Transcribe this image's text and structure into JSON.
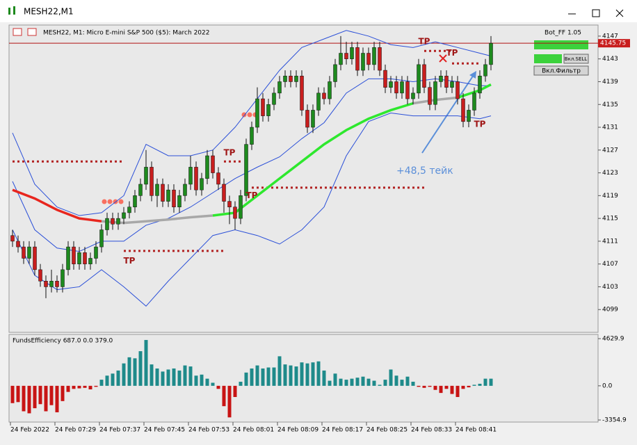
{
  "window": {
    "title": "MESH22,M1"
  },
  "chart_data": {
    "type": "candlestick",
    "header": "MESH22, M1:  Micro E-mini S&P 500 ($5): March 2022",
    "bot_label": "Bot_FF 1.05",
    "buttons": [
      "Вкл.SELL",
      "Вкл.Фильтр"
    ],
    "annotation": "+48,5 тейк",
    "up_color": "#1e8a1e",
    "down_color": "#c81e1e",
    "ylim": [
      4095,
      4148.7
    ],
    "yticks": [
      4147,
      4143,
      4139,
      4135,
      4131,
      4127,
      4123,
      4119,
      4115,
      4111,
      4107,
      4103,
      4099
    ],
    "last_price": 4145.75,
    "time_labels": [
      "24 Feb 2022",
      "24 Feb 07:29",
      "24 Feb 07:37",
      "24 Feb 07:45",
      "24 Feb 07:53",
      "24 Feb 08:01",
      "24 Feb 08:09",
      "24 Feb 08:17",
      "24 Feb 08:25",
      "24 Feb 08:33",
      "24 Feb 08:41"
    ],
    "candles": [
      [
        4112,
        4113,
        4110,
        4111
      ],
      [
        4111,
        4112,
        4109,
        4110
      ],
      [
        4110,
        4111,
        4107,
        4108
      ],
      [
        4108,
        4111,
        4107,
        4110
      ],
      [
        4110,
        4111,
        4105,
        4106
      ],
      [
        4106,
        4107,
        4103,
        4104
      ],
      [
        4104,
        4105,
        4101,
        4103
      ],
      [
        4103,
        4106,
        4102,
        4104
      ],
      [
        4104,
        4105,
        4102,
        4103
      ],
      [
        4103,
        4107,
        4102,
        4106
      ],
      [
        4106,
        4111,
        4105,
        4110
      ],
      [
        4110,
        4111,
        4106,
        4107
      ],
      [
        4107,
        4110,
        4106,
        4109
      ],
      [
        4109,
        4110,
        4106,
        4107
      ],
      [
        4107,
        4109,
        4106,
        4108
      ],
      [
        4108,
        4111,
        4107,
        4110
      ],
      [
        4110,
        4114,
        4109,
        4113
      ],
      [
        4113,
        4116,
        4112,
        4115
      ],
      [
        4115,
        4116,
        4113,
        4114
      ],
      [
        4114,
        4116,
        4113,
        4115
      ],
      [
        4115,
        4117,
        4114,
        4116
      ],
      [
        4116,
        4118,
        4115,
        4117
      ],
      [
        4117,
        4120,
        4116,
        4119
      ],
      [
        4119,
        4122,
        4118,
        4121
      ],
      [
        4121,
        4127,
        4120,
        4124
      ],
      [
        4124,
        4125,
        4118,
        4119
      ],
      [
        4119,
        4122,
        4117,
        4121
      ],
      [
        4121,
        4122,
        4117,
        4118
      ],
      [
        4118,
        4121,
        4117,
        4120
      ],
      [
        4120,
        4121,
        4116,
        4117
      ],
      [
        4117,
        4120,
        4116,
        4119
      ],
      [
        4119,
        4122,
        4118,
        4121
      ],
      [
        4121,
        4126,
        4120,
        4124
      ],
      [
        4124,
        4125,
        4119,
        4120
      ],
      [
        4120,
        4123,
        4119,
        4122
      ],
      [
        4122,
        4127,
        4121,
        4126
      ],
      [
        4126,
        4127,
        4122,
        4123
      ],
      [
        4123,
        4124,
        4120,
        4121
      ],
      [
        4121,
        4122,
        4116,
        4118
      ],
      [
        4118,
        4119,
        4114,
        4117
      ],
      [
        4117,
        4118,
        4113,
        4115
      ],
      [
        4115,
        4120,
        4114,
        4119
      ],
      [
        4119,
        4129,
        4118,
        4128
      ],
      [
        4128,
        4132,
        4127,
        4131
      ],
      [
        4131,
        4138,
        4130,
        4136
      ],
      [
        4136,
        4137,
        4132,
        4133
      ],
      [
        4133,
        4136,
        4132,
        4135
      ],
      [
        4135,
        4138,
        4134,
        4137
      ],
      [
        4137,
        4140,
        4136,
        4139
      ],
      [
        4139,
        4141,
        4138,
        4140
      ],
      [
        4140,
        4141,
        4138,
        4139
      ],
      [
        4139,
        4141,
        4138,
        4140
      ],
      [
        4140,
        4141,
        4133,
        4134
      ],
      [
        4134,
        4135,
        4130,
        4131
      ],
      [
        4131,
        4135,
        4130,
        4134
      ],
      [
        4134,
        4138,
        4133,
        4137
      ],
      [
        4137,
        4138,
        4135,
        4136
      ],
      [
        4136,
        4140,
        4135,
        4139
      ],
      [
        4139,
        4143,
        4138,
        4142
      ],
      [
        4142,
        4147,
        4141,
        4144
      ],
      [
        4144,
        4146,
        4142,
        4143
      ],
      [
        4143,
        4146,
        4142,
        4145
      ],
      [
        4145,
        4146,
        4140,
        4141
      ],
      [
        4141,
        4145,
        4140,
        4144
      ],
      [
        4144,
        4145,
        4141,
        4142
      ],
      [
        4142,
        4146,
        4141,
        4145
      ],
      [
        4145,
        4146,
        4140,
        4141
      ],
      [
        4141,
        4142,
        4137,
        4138
      ],
      [
        4138,
        4140,
        4137,
        4139
      ],
      [
        4139,
        4140,
        4136,
        4137
      ],
      [
        4137,
        4140,
        4136,
        4139
      ],
      [
        4139,
        4140,
        4135,
        4136
      ],
      [
        4136,
        4138,
        4135,
        4137
      ],
      [
        4137,
        4143,
        4136,
        4142
      ],
      [
        4142,
        4143,
        4137,
        4138
      ],
      [
        4138,
        4139,
        4134,
        4135
      ],
      [
        4135,
        4140,
        4134,
        4139
      ],
      [
        4139,
        4141,
        4138,
        4140
      ],
      [
        4140,
        4141,
        4137,
        4138
      ],
      [
        4138,
        4140,
        4137,
        4139
      ],
      [
        4139,
        4140,
        4135,
        4136
      ],
      [
        4136,
        4137,
        4131,
        4132
      ],
      [
        4132,
        4135,
        4131,
        4134
      ],
      [
        4134,
        4138,
        4133,
        4137
      ],
      [
        4137,
        4141,
        4136,
        4140
      ],
      [
        4140,
        4143,
        4139,
        4142
      ],
      [
        4142,
        4147,
        4141,
        4145.75
      ]
    ],
    "band_color": "#2a4fd8",
    "bands": {
      "at": [
        0,
        4,
        8,
        12,
        16,
        20,
        24,
        28,
        32,
        36,
        40,
        44,
        48,
        52,
        56,
        60,
        64,
        68,
        72,
        76,
        80,
        84,
        86
      ],
      "upper": [
        4130,
        4121,
        4117,
        4115.5,
        4116,
        4119,
        4128,
        4126,
        4126,
        4127,
        4131,
        4136,
        4141,
        4145,
        4146.5,
        4148,
        4147,
        4145.5,
        4145,
        4146,
        4145,
        4144,
        4143.5
      ],
      "middle": [
        4121.5,
        4113,
        4109.8,
        4109.2,
        4111,
        4111,
        4113.8,
        4115,
        4117,
        4119.5,
        4122,
        4124,
        4125.8,
        4129,
        4131.8,
        4137,
        4139.5,
        4139.5,
        4139,
        4139.5,
        4139,
        4138.3,
        4138.3
      ],
      "lower": [
        4113,
        4105,
        4102.5,
        4103,
        4106,
        4103,
        4099.6,
        4104,
        4108,
        4112,
        4113,
        4112,
        4110.5,
        4113,
        4117,
        4126,
        4132,
        4133.5,
        4133,
        4133,
        4133,
        4132.5,
        4133
      ]
    },
    "ma": [
      {
        "color": "#e8261e",
        "values": [
          4120,
          4118.5,
          4116.5,
          4115,
          4114.5,
          null,
          null,
          null,
          null,
          null,
          null,
          null,
          null,
          null,
          null,
          null,
          null,
          null,
          null,
          null,
          null,
          null,
          null
        ]
      },
      {
        "color": "#a8a8a8",
        "values": [
          null,
          null,
          null,
          null,
          4114.5,
          4114.2,
          4114.5,
          4114.8,
          4115.2,
          4115.5,
          null,
          null,
          null,
          null,
          null,
          null,
          null,
          null,
          4135.2,
          4135.8,
          4136.2,
          null,
          null
        ]
      },
      {
        "color": "#2ee82e",
        "values": [
          null,
          null,
          null,
          null,
          null,
          null,
          null,
          null,
          null,
          4115.5,
          4116,
          4119,
          4122,
          4125,
          4128,
          4130.5,
          4132.5,
          4134,
          4135.2,
          null,
          4136.2,
          4137.5,
          4138.5
        ]
      }
    ],
    "level_color": "#b22222",
    "levels": [
      {
        "price": 4125,
        "from": 0,
        "to": 20
      },
      {
        "price": 4109.3,
        "from": 20,
        "to": 38
      },
      {
        "price": 4125,
        "from": 38,
        "to": 41
      },
      {
        "price": 4120.4,
        "from": 43,
        "to": 74
      },
      {
        "price": 4144.4,
        "from": 74,
        "to": 79
      },
      {
        "price": 4142.2,
        "from": 79,
        "to": 84
      }
    ],
    "markers": [
      {
        "label": "TP",
        "at": 39,
        "price": 4126.5
      },
      {
        "label": "TP",
        "at": 21,
        "price": 4107.5
      },
      {
        "label": "TP",
        "at": 43,
        "price": 4119
      },
      {
        "label": "TP",
        "at": 74,
        "price": 4146
      },
      {
        "label": "TP",
        "at": 79,
        "price": 4144
      },
      {
        "label": "TP",
        "at": 84,
        "price": 4131.5
      }
    ],
    "indicator": {
      "label": "FundsEfficiency 687.0 0.0 379.0",
      "ylim": [
        -3490,
        4975
      ],
      "yticks": [
        4629.9,
        {
          "value": 0,
          "label": "0.0"
        },
        -3354.9
      ],
      "up_color": "#1e8a8a",
      "down_color": "#c81414",
      "values": [
        -1700,
        -1600,
        -2500,
        -2700,
        -2200,
        -1800,
        -2500,
        -1900,
        -2600,
        -1500,
        -600,
        -300,
        -250,
        -200,
        -350,
        -100,
        600,
        1000,
        1200,
        1500,
        2200,
        2800,
        2700,
        3400,
        4500,
        2100,
        1700,
        1400,
        1600,
        1700,
        1500,
        2000,
        1900,
        1000,
        1100,
        700,
        300,
        -300,
        -2000,
        -3100,
        -1100,
        400,
        1300,
        1700,
        2000,
        1700,
        1800,
        1800,
        2900,
        2100,
        2000,
        1900,
        2300,
        2200,
        2300,
        2400,
        1500,
        500,
        1200,
        700,
        600,
        700,
        800,
        900,
        700,
        500,
        100,
        600,
        1600,
        1000,
        600,
        900,
        400,
        -100,
        -200,
        -100,
        -400,
        -700,
        -300,
        -800,
        -1100,
        -300,
        -150,
        100,
        200,
        700,
        700
      ]
    }
  }
}
